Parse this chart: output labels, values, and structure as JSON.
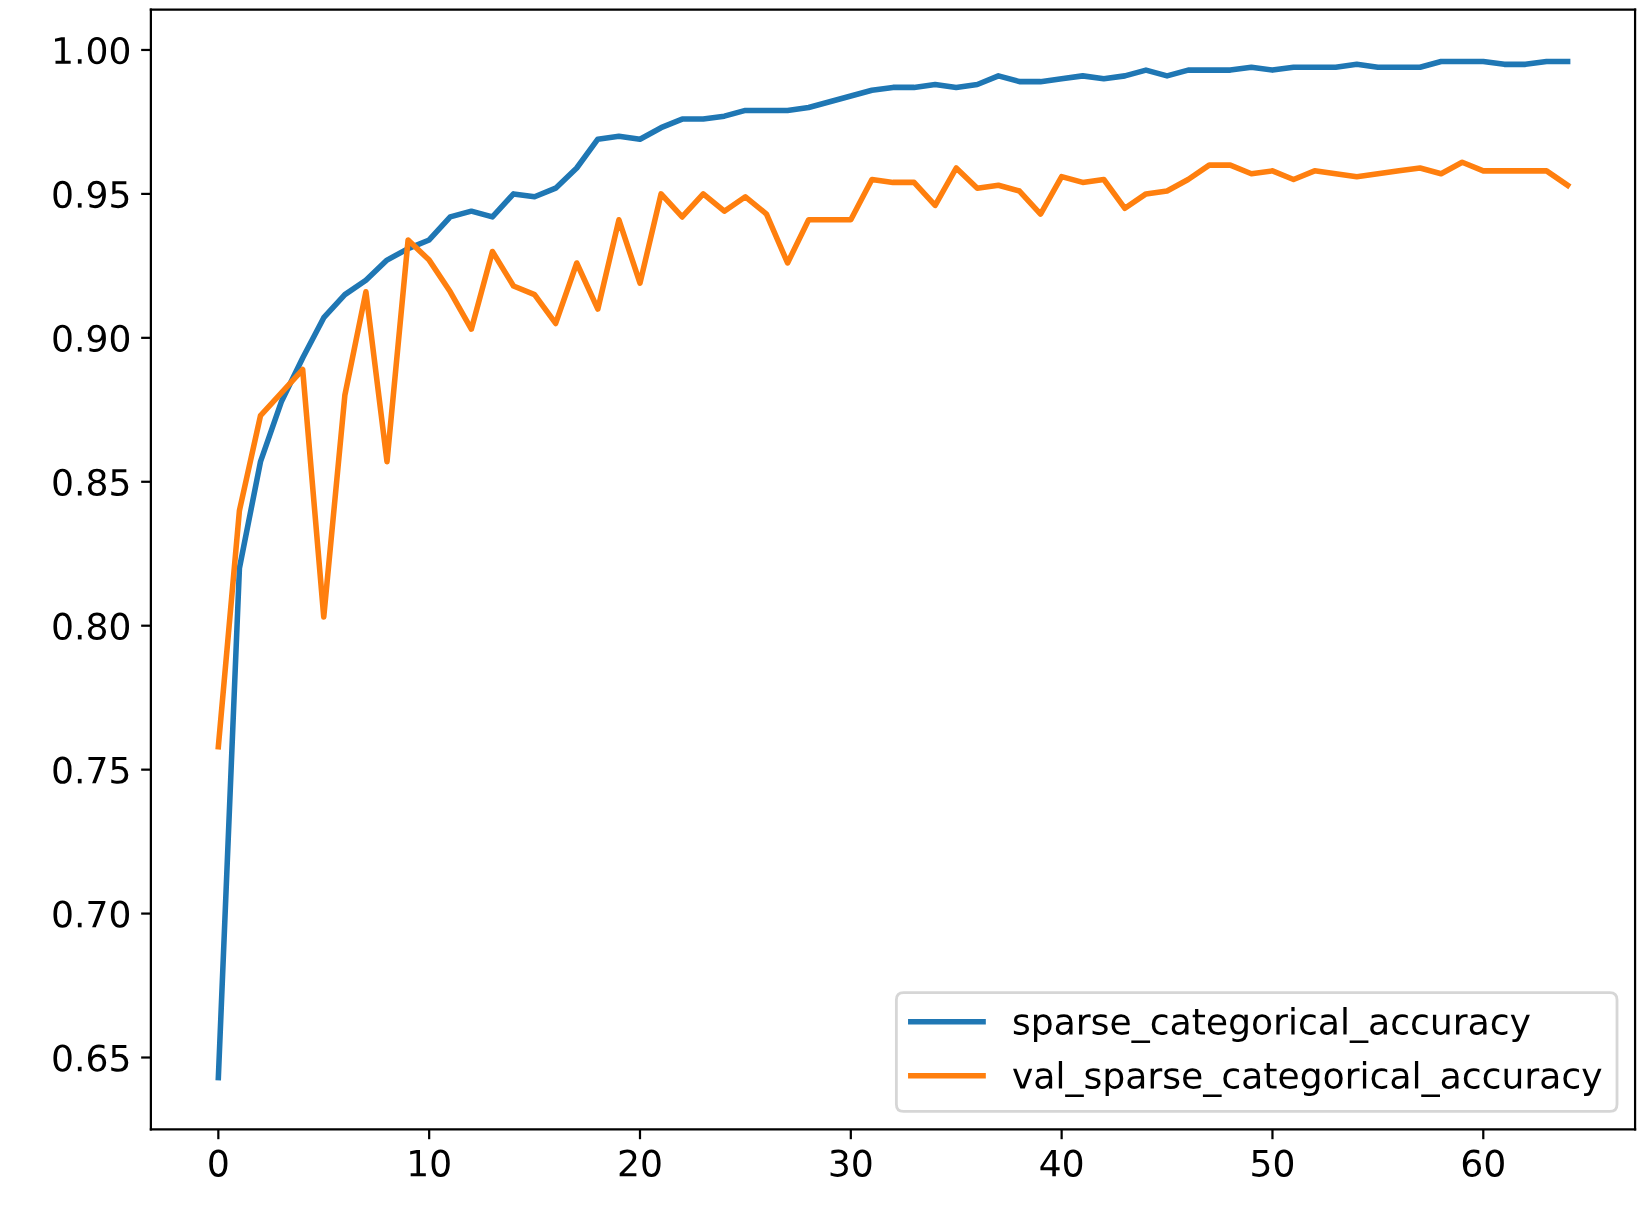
{
  "chart_data": {
    "type": "line",
    "x": [
      0,
      1,
      2,
      3,
      4,
      5,
      6,
      7,
      8,
      9,
      10,
      11,
      12,
      13,
      14,
      15,
      16,
      17,
      18,
      19,
      20,
      21,
      22,
      23,
      24,
      25,
      26,
      27,
      28,
      29,
      30,
      31,
      32,
      33,
      34,
      35,
      36,
      37,
      38,
      39,
      40,
      41,
      42,
      43,
      44,
      45,
      46,
      47,
      48,
      49,
      50,
      51,
      52,
      53,
      54,
      55,
      56,
      57,
      58,
      59,
      60,
      61,
      62,
      63,
      64
    ],
    "series": [
      {
        "name": "sparse_categorical_accuracy",
        "color": "#1f77b4",
        "values": [
          0.643,
          0.82,
          0.857,
          0.878,
          0.893,
          0.907,
          0.915,
          0.92,
          0.927,
          0.931,
          0.934,
          0.942,
          0.944,
          0.942,
          0.95,
          0.949,
          0.952,
          0.959,
          0.969,
          0.97,
          0.969,
          0.973,
          0.976,
          0.976,
          0.977,
          0.979,
          0.979,
          0.979,
          0.98,
          0.982,
          0.984,
          0.986,
          0.987,
          0.987,
          0.988,
          0.987,
          0.988,
          0.991,
          0.989,
          0.989,
          0.99,
          0.991,
          0.99,
          0.991,
          0.993,
          0.991,
          0.993,
          0.993,
          0.993,
          0.994,
          0.993,
          0.994,
          0.994,
          0.994,
          0.995,
          0.994,
          0.994,
          0.994,
          0.996,
          0.996,
          0.996,
          0.995,
          0.995,
          0.996,
          0.996
        ]
      },
      {
        "name": "val_sparse_categorical_accuracy",
        "color": "#ff7f0e",
        "values": [
          0.758,
          0.84,
          0.873,
          0.881,
          0.889,
          0.803,
          0.88,
          0.916,
          0.857,
          0.934,
          0.927,
          0.916,
          0.903,
          0.93,
          0.918,
          0.915,
          0.905,
          0.926,
          0.91,
          0.941,
          0.919,
          0.95,
          0.942,
          0.95,
          0.944,
          0.949,
          0.943,
          0.926,
          0.941,
          0.941,
          0.941,
          0.955,
          0.954,
          0.954,
          0.946,
          0.959,
          0.952,
          0.953,
          0.951,
          0.943,
          0.956,
          0.954,
          0.955,
          0.945,
          0.95,
          0.951,
          0.955,
          0.96,
          0.96,
          0.957,
          0.958,
          0.955,
          0.958,
          0.957,
          0.956,
          0.957,
          0.958,
          0.959,
          0.957,
          0.961,
          0.958,
          0.958,
          0.958,
          0.958,
          0.953
        ]
      }
    ],
    "xlim": [
      -3.2,
      67.2
    ],
    "ylim": [
      0.625,
      1.014
    ],
    "xticks": [
      0,
      10,
      20,
      30,
      40,
      50,
      60
    ],
    "yticks": [
      {
        "value": 0.65,
        "label": "0.65"
      },
      {
        "value": 0.7,
        "label": "0.70"
      },
      {
        "value": 0.75,
        "label": "0.75"
      },
      {
        "value": 0.8,
        "label": "0.80"
      },
      {
        "value": 0.85,
        "label": "0.85"
      },
      {
        "value": 0.9,
        "label": "0.90"
      },
      {
        "value": 0.95,
        "label": "0.95"
      },
      {
        "value": 1.0,
        "label": "1.00"
      }
    ],
    "legend": "lower right",
    "grid": false,
    "marker": "none",
    "line_style": "solid"
  }
}
